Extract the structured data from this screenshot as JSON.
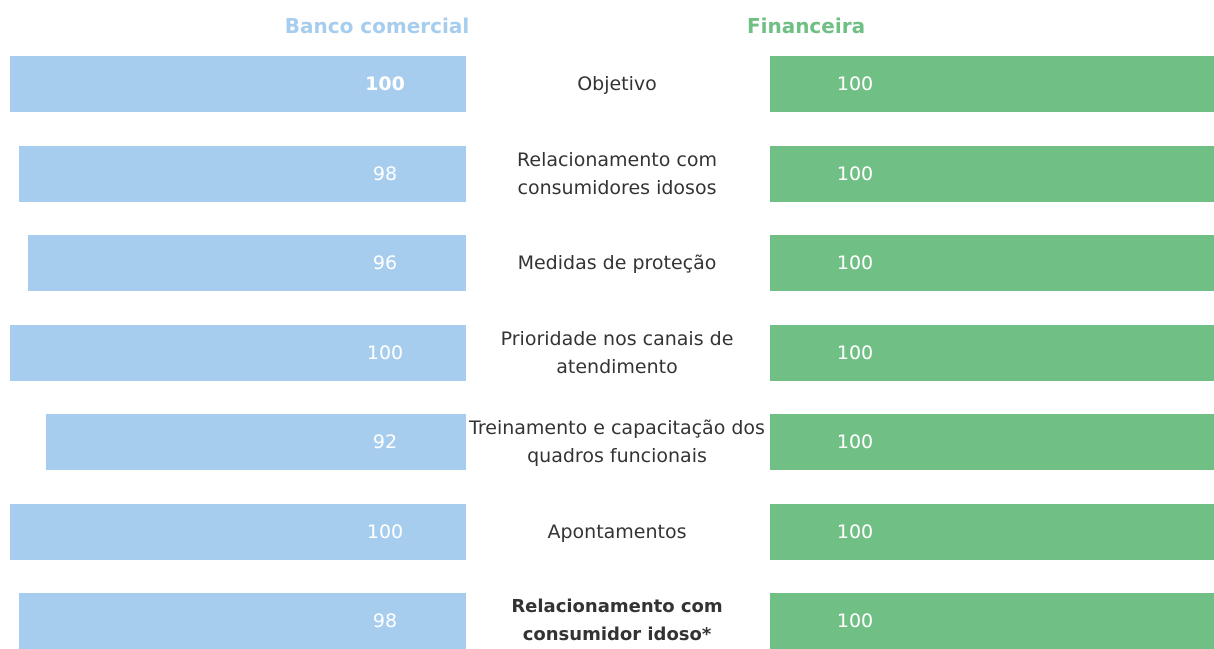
{
  "chart_data": {
    "type": "butterfly",
    "categories": [
      "Objetivo",
      "Relacionamento com consumidores idosos",
      "Medidas de proteção",
      "Prioridade nos canais de atendimento",
      "Treinamento e capacitação dos quadros funcionais",
      "Apontamentos",
      "Relacionamento com consumidor idoso*"
    ],
    "series": [
      {
        "name": "Banco comercial",
        "color": "#a7cdee",
        "values": [
          100,
          98,
          96,
          100,
          92,
          100,
          98
        ]
      },
      {
        "name": "Financeira",
        "color": "#70bf85",
        "values": [
          100,
          100,
          100,
          100,
          100,
          100,
          100
        ]
      }
    ],
    "xlim": [
      0,
      100
    ]
  }
}
